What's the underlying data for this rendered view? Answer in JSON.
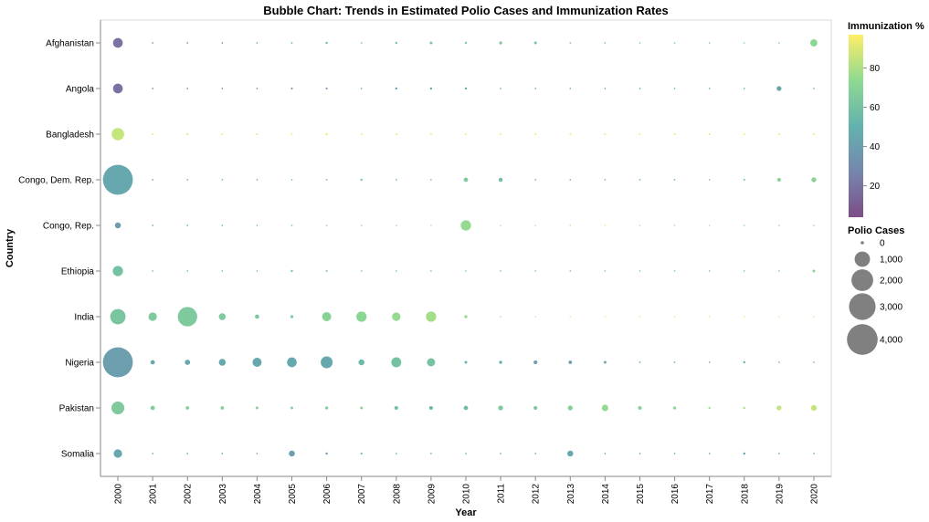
{
  "chart_data": {
    "type": "scatter",
    "title": "Bubble Chart: Trends in Estimated Polio Cases and Immunization Rates",
    "xlabel": "Year",
    "ylabel": "Country",
    "years": [
      "2000",
      "2001",
      "2002",
      "2003",
      "2004",
      "2005",
      "2006",
      "2007",
      "2008",
      "2009",
      "2010",
      "2011",
      "2012",
      "2013",
      "2014",
      "2015",
      "2016",
      "2017",
      "2018",
      "2019",
      "2020"
    ],
    "countries": [
      "Afghanistan",
      "Angola",
      "Bangladesh",
      "Congo, Dem. Rep.",
      "Congo, Rep.",
      "Ethiopia",
      "India",
      "Nigeria",
      "Pakistan",
      "Somalia"
    ],
    "size_field": "Polio Cases",
    "color_field": "Immunization %",
    "color_scheme": "viridis",
    "color_domain": [
      4,
      97
    ],
    "size_domain": [
      0,
      4500
    ],
    "grid": false,
    "legend_placement": "right",
    "size_legend": {
      "title": "Polio Cases",
      "values": [
        0,
        1000,
        2000,
        3000,
        4000
      ],
      "labels": [
        "0",
        "1,000",
        "2,000",
        "3,000",
        "4,000"
      ]
    },
    "color_legend": {
      "title": "Immunization %",
      "ticks": [
        20,
        40,
        60,
        80
      ],
      "labels": [
        "20",
        "40",
        "60",
        "80"
      ]
    },
    "series": [
      {
        "country": "Afghanistan",
        "cases": [
          400,
          10,
          10,
          10,
          10,
          10,
          20,
          10,
          20,
          30,
          20,
          40,
          30,
          10,
          10,
          10,
          10,
          10,
          10,
          10,
          220
        ],
        "immunization": [
          20,
          35,
          35,
          40,
          45,
          50,
          55,
          60,
          60,
          60,
          65,
          65,
          60,
          60,
          60,
          65,
          68,
          70,
          72,
          66,
          72
        ]
      },
      {
        "country": "Angola",
        "cases": [
          400,
          10,
          10,
          10,
          10,
          15,
          15,
          10,
          20,
          20,
          20,
          10,
          10,
          10,
          10,
          10,
          10,
          10,
          10,
          100,
          10
        ],
        "immunization": [
          20,
          25,
          25,
          30,
          30,
          25,
          30,
          45,
          40,
          40,
          45,
          50,
          50,
          50,
          50,
          50,
          50,
          50,
          50,
          45,
          50
        ]
      },
      {
        "country": "Bangladesh",
        "cases": [
          650,
          15,
          15,
          15,
          15,
          15,
          20,
          15,
          15,
          15,
          15,
          15,
          15,
          15,
          15,
          15,
          15,
          15,
          15,
          15,
          15
        ],
        "immunization": [
          85,
          95,
          90,
          95,
          93,
          95,
          95,
          95,
          93,
          95,
          95,
          95,
          95,
          95,
          93,
          95,
          93,
          92,
          95,
          95,
          95
        ]
      },
      {
        "country": "Congo, Dem. Rep.",
        "cases": [
          3800,
          10,
          10,
          10,
          10,
          10,
          10,
          20,
          10,
          10,
          80,
          70,
          10,
          10,
          10,
          10,
          10,
          10,
          15,
          60,
          100
        ],
        "immunization": [
          45,
          40,
          45,
          50,
          50,
          55,
          55,
          60,
          55,
          55,
          65,
          60,
          55,
          55,
          58,
          58,
          58,
          60,
          60,
          70,
          70
        ]
      },
      {
        "country": "Congo, Rep.",
        "cases": [
          150,
          10,
          10,
          10,
          10,
          10,
          5,
          5,
          5,
          5,
          450,
          5,
          5,
          5,
          5,
          5,
          5,
          5,
          5,
          5,
          5
        ],
        "immunization": [
          40,
          45,
          50,
          55,
          60,
          65,
          65,
          70,
          75,
          80,
          75,
          80,
          80,
          85,
          90,
          80,
          80,
          80,
          70,
          70,
          70
        ]
      },
      {
        "country": "Ethiopia",
        "cases": [
          450,
          10,
          10,
          10,
          10,
          20,
          15,
          10,
          10,
          10,
          10,
          10,
          10,
          10,
          10,
          10,
          10,
          10,
          10,
          10,
          30
        ],
        "immunization": [
          60,
          60,
          60,
          60,
          62,
          62,
          65,
          65,
          65,
          65,
          66,
          67,
          67,
          67,
          67,
          67,
          67,
          67,
          68,
          68,
          70
        ]
      },
      {
        "country": "India",
        "cases": [
          1000,
          300,
          1600,
          200,
          80,
          40,
          350,
          450,
          300,
          450,
          40,
          5,
          5,
          5,
          5,
          5,
          5,
          5,
          5,
          5,
          5
        ],
        "immunization": [
          62,
          65,
          65,
          65,
          65,
          65,
          70,
          72,
          75,
          78,
          75,
          80,
          85,
          90,
          92,
          92,
          92,
          92,
          92,
          92,
          92
        ]
      },
      {
        "country": "Nigeria",
        "cases": [
          3800,
          80,
          120,
          200,
          350,
          400,
          600,
          150,
          420,
          280,
          30,
          40,
          60,
          50,
          30,
          10,
          10,
          10,
          20,
          10,
          10
        ],
        "immunization": [
          40,
          45,
          45,
          45,
          45,
          45,
          45,
          55,
          60,
          60,
          50,
          45,
          40,
          40,
          45,
          50,
          50,
          52,
          52,
          58,
          55
        ]
      },
      {
        "country": "Pakistan",
        "cases": [
          700,
          80,
          50,
          50,
          30,
          30,
          40,
          30,
          60,
          60,
          80,
          100,
          60,
          100,
          180,
          60,
          40,
          20,
          20,
          100,
          140
        ],
        "immunization": [
          65,
          65,
          68,
          68,
          68,
          68,
          68,
          68,
          60,
          55,
          55,
          65,
          65,
          68,
          75,
          70,
          72,
          78,
          80,
          85,
          85
        ]
      },
      {
        "country": "Somalia",
        "cases": [
          300,
          10,
          10,
          10,
          10,
          150,
          20,
          15,
          10,
          10,
          10,
          10,
          10,
          150,
          10,
          10,
          10,
          10,
          20,
          10,
          10
        ],
        "immunization": [
          45,
          45,
          45,
          45,
          40,
          40,
          35,
          45,
          45,
          45,
          45,
          45,
          45,
          45,
          45,
          45,
          45,
          45,
          42,
          45,
          45
        ]
      }
    ]
  }
}
